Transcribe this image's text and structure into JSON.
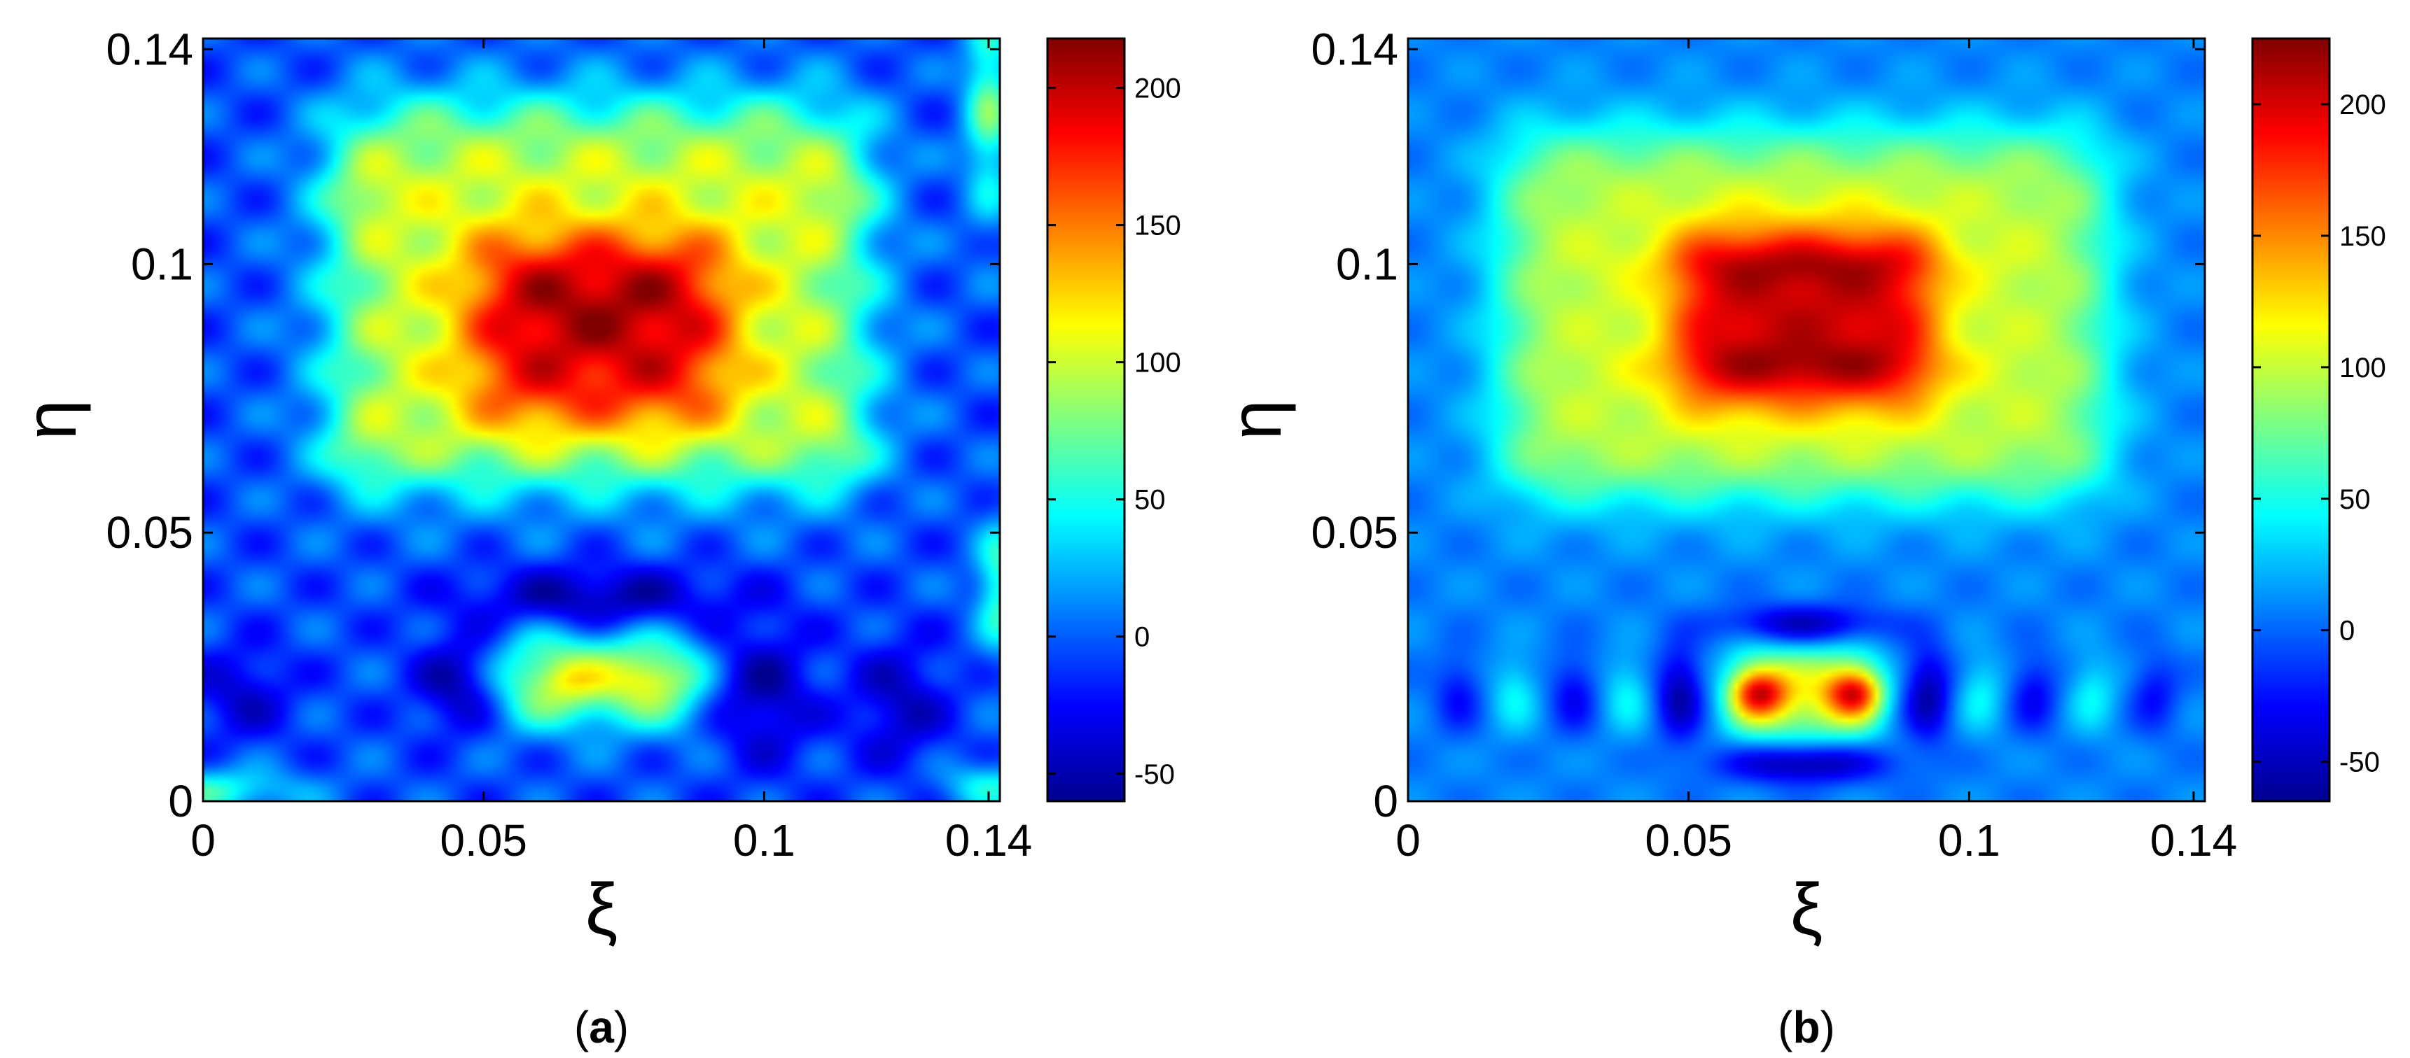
{
  "colors": {
    "colormap": [
      "#00008f",
      "#0000ff",
      "#00ffff",
      "#ffff00",
      "#ff0000",
      "#800000"
    ],
    "frame": "#000000",
    "background": "#ffffff"
  },
  "chart_data": [
    {
      "type": "heatmap",
      "panel_label": "(a)",
      "caption_open": "(",
      "caption_letter": "a",
      "caption_close": ")",
      "xlabel": "ξ",
      "ylabel": "η",
      "xlim": [
        0,
        0.142
      ],
      "ylim": [
        0,
        0.142
      ],
      "xticks": [
        0,
        0.05,
        0.1,
        0.14
      ],
      "xtick_labels": [
        "0",
        "0.05",
        "0.1",
        "0.14"
      ],
      "yticks": [
        0,
        0.05,
        0.1,
        0.14
      ],
      "ytick_labels": [
        "0",
        "0.05",
        "0.1",
        "0.14"
      ],
      "colorbar": {
        "range": [
          -60,
          218
        ],
        "ticks": [
          -50,
          0,
          50,
          100,
          150,
          200
        ],
        "tick_labels": [
          "-50",
          "0",
          "50",
          "100",
          "150",
          "200"
        ]
      },
      "grid": false,
      "field": {
        "base": -5,
        "ripple": {
          "amplitude": 18,
          "period_x": 0.02,
          "period_y": 0.016
        },
        "features": [
          {
            "kind": "rect",
            "xc": 0.0705,
            "yc": 0.0945,
            "hx": 0.047,
            "hy": 0.035,
            "edge": 0.004,
            "value": 108
          },
          {
            "kind": "rect",
            "xc": 0.0705,
            "yc": 0.0875,
            "hx": 0.022,
            "hy": 0.0165,
            "edge": 0.0035,
            "value": 92
          },
          {
            "kind": "blob",
            "x": 0.062,
            "y": 0.095,
            "sx": 0.009,
            "sy": 0.007,
            "value": 15
          },
          {
            "kind": "blob",
            "x": 0.08,
            "y": 0.095,
            "sx": 0.009,
            "sy": 0.007,
            "value": 15
          },
          {
            "kind": "blob",
            "x": 0.028,
            "y": 0.113,
            "sx": 0.005,
            "sy": 0.005,
            "value": 22
          },
          {
            "kind": "blob",
            "x": 0.113,
            "y": 0.113,
            "sx": 0.005,
            "sy": 0.005,
            "value": 22
          },
          {
            "kind": "blob",
            "x": 0.028,
            "y": 0.065,
            "sx": 0.005,
            "sy": 0.005,
            "value": 22
          },
          {
            "kind": "blob",
            "x": 0.113,
            "y": 0.065,
            "sx": 0.005,
            "sy": 0.005,
            "value": 22
          },
          {
            "kind": "rect",
            "xc": 0.071,
            "yc": 0.0225,
            "hx": 0.0175,
            "hy": 0.0075,
            "edge": 0.0025,
            "value": 100
          },
          {
            "kind": "blob",
            "x": 0.065,
            "y": 0.0225,
            "sx": 0.004,
            "sy": 0.003,
            "value": 30
          },
          {
            "kind": "blob",
            "x": 0.079,
            "y": 0.0225,
            "sx": 0.004,
            "sy": 0.003,
            "value": 30
          },
          {
            "kind": "blob",
            "x": 0.07,
            "y": 0.038,
            "sx": 0.016,
            "sy": 0.004,
            "value": -50
          },
          {
            "kind": "blob",
            "x": 0.1,
            "y": 0.02,
            "sx": 0.006,
            "sy": 0.009,
            "value": -45
          },
          {
            "kind": "blob",
            "x": 0.124,
            "y": 0.018,
            "sx": 0.006,
            "sy": 0.008,
            "value": -40
          },
          {
            "kind": "blob",
            "x": 0.045,
            "y": 0.022,
            "sx": 0.005,
            "sy": 0.006,
            "value": -45
          },
          {
            "kind": "blob",
            "x": 0.007,
            "y": 0.02,
            "sx": 0.006,
            "sy": 0.006,
            "value": -35
          },
          {
            "kind": "blob",
            "x": 0.0,
            "y": 0.002,
            "sx": 0.012,
            "sy": 0.003,
            "value": 60
          },
          {
            "kind": "blob",
            "x": 0.14,
            "y": 0.13,
            "sx": 0.003,
            "sy": 0.014,
            "value": 75
          },
          {
            "kind": "blob",
            "x": 0.142,
            "y": 0.04,
            "sx": 0.003,
            "sy": 0.008,
            "value": 70
          },
          {
            "kind": "blob",
            "x": 0.14,
            "y": 0.003,
            "sx": 0.006,
            "sy": 0.003,
            "value": 50
          }
        ]
      }
    },
    {
      "type": "heatmap",
      "panel_label": "(b)",
      "caption_open": "(",
      "caption_letter": "b",
      "caption_close": ")",
      "xlabel": "ξ",
      "ylabel": "η",
      "xlim": [
        0,
        0.142
      ],
      "ylim": [
        0,
        0.142
      ],
      "xticks": [
        0,
        0.05,
        0.1,
        0.14
      ],
      "xtick_labels": [
        "0",
        "0.05",
        "0.1",
        "0.14"
      ],
      "yticks": [
        0,
        0.05,
        0.1,
        0.14
      ],
      "ytick_labels": [
        "0",
        "0.05",
        "0.1",
        "0.14"
      ],
      "colorbar": {
        "range": [
          -65,
          225
        ],
        "ticks": [
          -50,
          0,
          50,
          100,
          150,
          200
        ],
        "tick_labels": [
          "-50",
          "0",
          "50",
          "100",
          "150",
          "200"
        ]
      },
      "grid": false,
      "field": {
        "base": 8,
        "ripple": {
          "amplitude": 8,
          "period_x": 0.02,
          "period_y": 0.016
        },
        "features": [
          {
            "kind": "rect",
            "xc": 0.0705,
            "yc": 0.0905,
            "hx": 0.0535,
            "hy": 0.0335,
            "edge": 0.0035,
            "value": 92
          },
          {
            "kind": "rect",
            "xc": 0.0705,
            "yc": 0.09,
            "hx": 0.0225,
            "hy": 0.016,
            "edge": 0.003,
            "value": 105
          },
          {
            "kind": "blob",
            "x": 0.0705,
            "y": 0.1,
            "sx": 0.02,
            "sy": 0.003,
            "value": 22
          },
          {
            "kind": "blob",
            "x": 0.0705,
            "y": 0.081,
            "sx": 0.02,
            "sy": 0.003,
            "value": 22
          },
          {
            "kind": "rect",
            "xc": 0.0705,
            "yc": 0.02,
            "hx": 0.013,
            "hy": 0.0075,
            "edge": 0.002,
            "value": 100
          },
          {
            "kind": "blob",
            "x": 0.0625,
            "y": 0.02,
            "sx": 0.0035,
            "sy": 0.003,
            "value": 110
          },
          {
            "kind": "blob",
            "x": 0.0795,
            "y": 0.02,
            "sx": 0.0035,
            "sy": 0.003,
            "value": 110
          },
          {
            "kind": "blob",
            "x": 0.0705,
            "y": 0.007,
            "sx": 0.01,
            "sy": 0.0025,
            "value": -70
          },
          {
            "kind": "blob",
            "x": 0.0705,
            "y": 0.033,
            "sx": 0.01,
            "sy": 0.0025,
            "value": -60
          },
          {
            "kind": "blob",
            "x": 0.0485,
            "y": 0.02,
            "sx": 0.003,
            "sy": 0.006,
            "value": -65
          },
          {
            "kind": "blob",
            "x": 0.0925,
            "y": 0.02,
            "sx": 0.003,
            "sy": 0.006,
            "value": -65
          },
          {
            "kind": "blob",
            "x": 0.009,
            "y": 0.02,
            "sx": 0.003,
            "sy": 0.005,
            "value": -35
          },
          {
            "kind": "blob",
            "x": 0.133,
            "y": 0.02,
            "sx": 0.003,
            "sy": 0.005,
            "value": -35
          },
          {
            "kind": "blob",
            "x": 0.0295,
            "y": 0.02,
            "sx": 0.003,
            "sy": 0.005,
            "value": -40
          },
          {
            "kind": "blob",
            "x": 0.1115,
            "y": 0.02,
            "sx": 0.003,
            "sy": 0.005,
            "value": -40
          },
          {
            "kind": "blob",
            "x": 0.019,
            "y": 0.02,
            "sx": 0.003,
            "sy": 0.005,
            "value": 35
          },
          {
            "kind": "blob",
            "x": 0.039,
            "y": 0.02,
            "sx": 0.003,
            "sy": 0.005,
            "value": 35
          },
          {
            "kind": "blob",
            "x": 0.102,
            "y": 0.02,
            "sx": 0.003,
            "sy": 0.005,
            "value": 35
          },
          {
            "kind": "blob",
            "x": 0.122,
            "y": 0.02,
            "sx": 0.003,
            "sy": 0.005,
            "value": 35
          }
        ]
      }
    }
  ]
}
